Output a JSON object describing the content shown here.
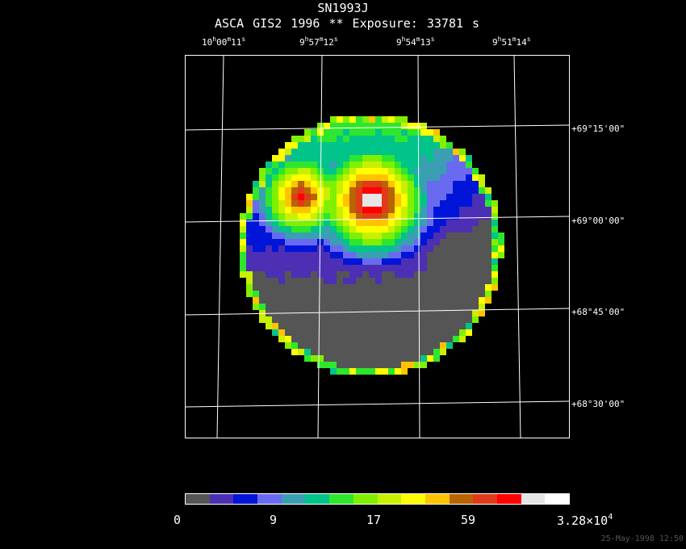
{
  "header": {
    "title": "SN1993J",
    "subtitle": "ASCA GIS2   1996     **    Exposure: 33781 s"
  },
  "ra_labels": [
    {
      "h": "10",
      "m": "00",
      "s": "11"
    },
    {
      "h": "9",
      "m": "57",
      "s": "12"
    },
    {
      "h": "9",
      "m": "54",
      "s": "13"
    },
    {
      "h": "9",
      "m": "51",
      "s": "14"
    }
  ],
  "dec_labels": [
    "+69°15'00\"",
    "+69°00'00\"",
    "+68°45'00\"",
    "+68°30'00\""
  ],
  "colorbar": {
    "labels": [
      "0",
      "9",
      "17",
      "59"
    ],
    "max_mantissa": "3.28×10",
    "max_exponent": "4",
    "colors": [
      "#555555",
      "#4c2fb4",
      "#0015d8",
      "#6a6af0",
      "#3a9fb2",
      "#00c48a",
      "#2ee62e",
      "#80f000",
      "#c8f000",
      "#ffff00",
      "#ffc400",
      "#b86400",
      "#e03a1a",
      "#ff0000",
      "#e6e6e6",
      "#ffffff"
    ]
  },
  "timestamp": "25-May-1998 12:50"
}
